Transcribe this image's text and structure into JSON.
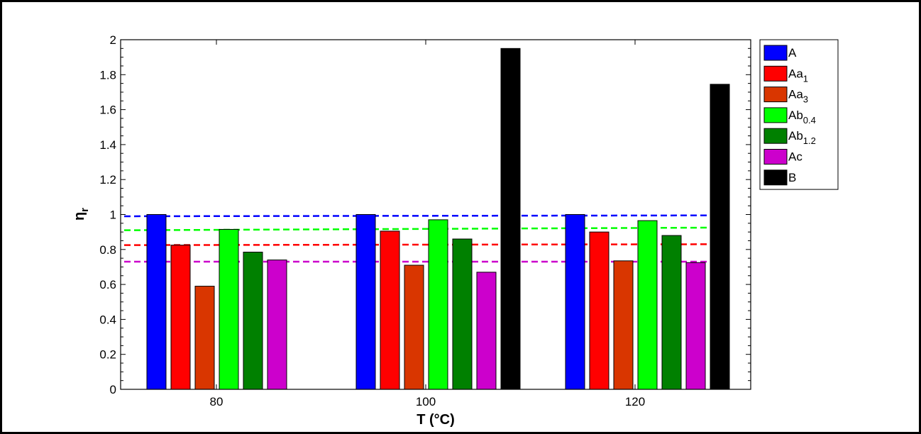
{
  "chart_data": {
    "type": "bar",
    "xlabel": "T (°C)",
    "ylabel": "η",
    "ylabel_sub": "r",
    "ylim": [
      0,
      2
    ],
    "yticks": [
      "0",
      "0.2",
      "0.4",
      "0.6",
      "0.8",
      "1",
      "1.2",
      "1.4",
      "1.6",
      "1.8",
      "2"
    ],
    "categories": [
      "80",
      "100",
      "120"
    ],
    "legend_position": "outside-top-right",
    "series": [
      {
        "name": "A",
        "label_base": "A",
        "label_sub": "",
        "color": "#0000ff",
        "values": [
          1.0,
          1.0,
          1.0
        ]
      },
      {
        "name": "Aa1",
        "label_base": "Aa",
        "label_sub": "1",
        "color": "#ff0000",
        "values": [
          0.825,
          0.905,
          0.9
        ]
      },
      {
        "name": "Aa3",
        "label_base": "Aa",
        "label_sub": "3",
        "color": "#d93600",
        "values": [
          0.59,
          0.71,
          0.735
        ]
      },
      {
        "name": "Ab0.4",
        "label_base": "Ab",
        "label_sub": "0.4",
        "color": "#00ff00",
        "values": [
          0.915,
          0.97,
          0.965
        ]
      },
      {
        "name": "Ab1.2",
        "label_base": "Ab",
        "label_sub": "1.2",
        "color": "#008000",
        "values": [
          0.785,
          0.86,
          0.88
        ]
      },
      {
        "name": "Ac",
        "label_base": "Ac",
        "label_sub": "",
        "color": "#cc00cc",
        "values": [
          0.74,
          0.67,
          0.725
        ]
      },
      {
        "name": "B",
        "label_base": "B",
        "label_sub": "",
        "color": "#000000",
        "values": [
          null,
          1.95,
          1.745
        ]
      }
    ],
    "reference_lines": [
      {
        "color": "#0000ff",
        "value_start": 0.99,
        "value_end": 0.995,
        "style": "dashed"
      },
      {
        "color": "#00ff00",
        "value_start": 0.91,
        "value_end": 0.925,
        "style": "dashed"
      },
      {
        "color": "#ff0000",
        "value_start": 0.825,
        "value_end": 0.83,
        "style": "dashed"
      },
      {
        "color": "#cc00cc",
        "value_start": 0.73,
        "value_end": 0.73,
        "style": "dashed"
      }
    ]
  }
}
